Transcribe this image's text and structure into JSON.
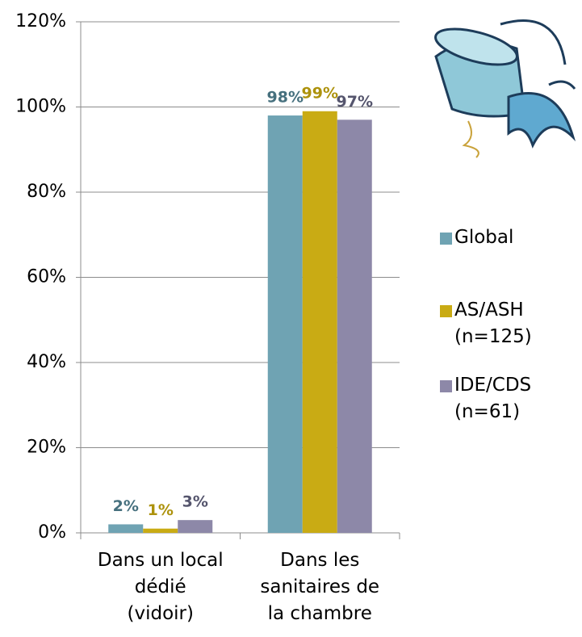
{
  "chart_data": {
    "type": "bar",
    "categories": [
      "Dans un local\ndédié\n(vidoir)",
      "Dans les\nsanitaires de\nla chambre"
    ],
    "series": [
      {
        "name": "Global",
        "color": "#6fa3b3",
        "label_color": "#46707e",
        "values": [
          2,
          98
        ],
        "value_labels": [
          "2%",
          "98%"
        ]
      },
      {
        "name": "AS/ASH\n(n=125)",
        "color": "#c9ab14",
        "label_color": "#ad920c",
        "values": [
          1,
          99
        ],
        "value_labels": [
          "1%",
          "99%"
        ]
      },
      {
        "name": "IDE/CDS\n(n=61)",
        "color": "#8d88a8",
        "label_color": "#55556d",
        "values": [
          3,
          97
        ],
        "value_labels": [
          "3%",
          "97%"
        ]
      }
    ],
    "ylim": [
      0,
      120
    ],
    "yticks": [
      {
        "value": 0,
        "label": "0%"
      },
      {
        "value": 20,
        "label": "20%"
      },
      {
        "value": 40,
        "label": "40%"
      },
      {
        "value": 60,
        "label": "60%"
      },
      {
        "value": 80,
        "label": "80%"
      },
      {
        "value": 100,
        "label": "100%"
      },
      {
        "value": 120,
        "label": "120%"
      }
    ],
    "grid": true
  }
}
